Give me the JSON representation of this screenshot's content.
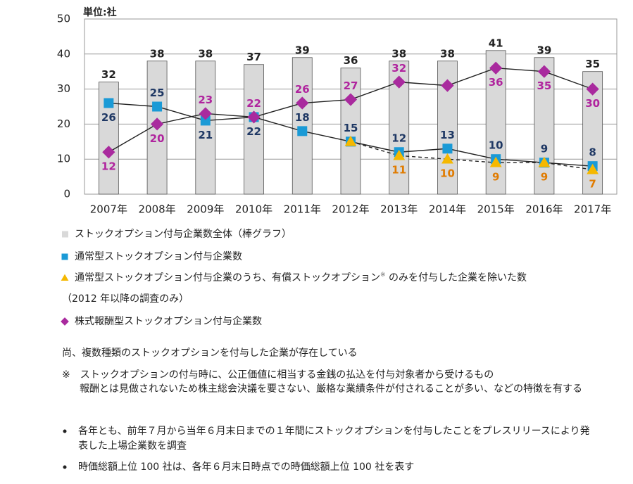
{
  "chart_data": {
    "type": "bar_line",
    "unit_label": "単位:社",
    "categories": [
      "2007年",
      "2008年",
      "2009年",
      "2010年",
      "2011年",
      "2012年",
      "2013年",
      "2014年",
      "2015年",
      "2016年",
      "2017年"
    ],
    "ylim": [
      0,
      50
    ],
    "yticks": [
      0,
      10,
      20,
      30,
      40,
      50
    ],
    "grid": true,
    "series": [
      {
        "name": "ストックオプション付与企業数全体（棒グラフ）",
        "kind": "bar",
        "color": "#d9d9d9",
        "values": [
          32,
          38,
          38,
          37,
          39,
          36,
          38,
          38,
          41,
          39,
          35
        ]
      },
      {
        "name": "通常型ストックオプション付与企業数",
        "kind": "line",
        "marker": "square",
        "color": "#1a9ad6",
        "label_color": "#1f3864",
        "values": [
          26,
          25,
          21,
          22,
          18,
          15,
          12,
          13,
          10,
          9,
          8
        ]
      },
      {
        "name": "通常型ストックオプション付与企業のうち、有償ストックオプション",
        "name_sup": "※",
        "name_rest": " のみを付与した企業を除いた数",
        "name_line2": "（2012 年以降の調査のみ）",
        "kind": "line",
        "dashed": true,
        "marker": "triangle",
        "color": "#f5b800",
        "label_color": "#e07b00",
        "values": [
          null,
          null,
          null,
          null,
          null,
          15,
          11,
          10,
          9,
          9,
          7
        ],
        "value_labels": [
          null,
          null,
          null,
          null,
          null,
          null,
          "11",
          "10",
          "9",
          "9",
          "7"
        ]
      },
      {
        "name": "株式報酬型ストックオプション付与企業数",
        "kind": "line",
        "marker": "diamond",
        "color": "#a92a9e",
        "label_color": "#b0249e",
        "values": [
          12,
          20,
          23,
          22,
          26,
          27,
          32,
          31,
          36,
          35,
          30
        ],
        "value_labels": [
          "12",
          "20",
          "23",
          "22",
          "26",
          "27",
          "32",
          null,
          "36",
          "35",
          "30"
        ]
      }
    ]
  },
  "notes": [
    "尚、複数種類のストックオプションを付与した企業が存在している",
    "※　ストックオプションの付与時に、公正価値に相当する金銭の払込を付与対象者から受けるもの",
    "報酬とは見做されないため株主総会決議を要さない、厳格な業績条件が付されることが多い、などの特徴を有する"
  ],
  "bullets": [
    [
      "各年とも、前年７月から当年６月末日までの１年間にストックオプションを付与したことをプレスリリースにより発",
      "表した上場企業数を調査"
    ],
    [
      "時価総額上位 100 社は、各年６月末日時点での時価総額上位 100 社を表す"
    ]
  ]
}
